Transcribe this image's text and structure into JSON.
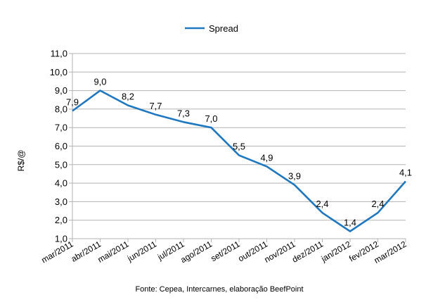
{
  "chart_data": {
    "type": "line",
    "title": "",
    "xlabel": "",
    "ylabel": "R$/@",
    "ylim": [
      1.0,
      11.0
    ],
    "y_ticks": [
      "1,0",
      "2,0",
      "3,0",
      "4,0",
      "5,0",
      "6,0",
      "7,0",
      "8,0",
      "9,0",
      "10,0",
      "11,0"
    ],
    "grid": "horizontal",
    "legend_position": "top",
    "categories": [
      "mar/2011",
      "abr/2011",
      "mai/2011",
      "jun/2011",
      "jul/2011",
      "ago/2011",
      "set/2011",
      "out/2011",
      "nov/2011",
      "dez/2011",
      "jan/2012",
      "fev/2012",
      "mar/2012"
    ],
    "series": [
      {
        "name": "Spread",
        "color": "#1f77c0",
        "values": [
          7.9,
          9.0,
          8.2,
          7.7,
          7.3,
          7.0,
          5.5,
          4.9,
          3.9,
          2.4,
          1.4,
          2.4,
          4.1
        ],
        "labels": [
          "7,9",
          "9,0",
          "8,2",
          "7,7",
          "7,3",
          "7,0",
          "5,5",
          "4,9",
          "3,9",
          "2,4",
          "1,4",
          "2,4",
          "4,1"
        ]
      }
    ],
    "source_note": "Fonte: Cepea, Intercarnes, elaboração BeefPoint"
  }
}
